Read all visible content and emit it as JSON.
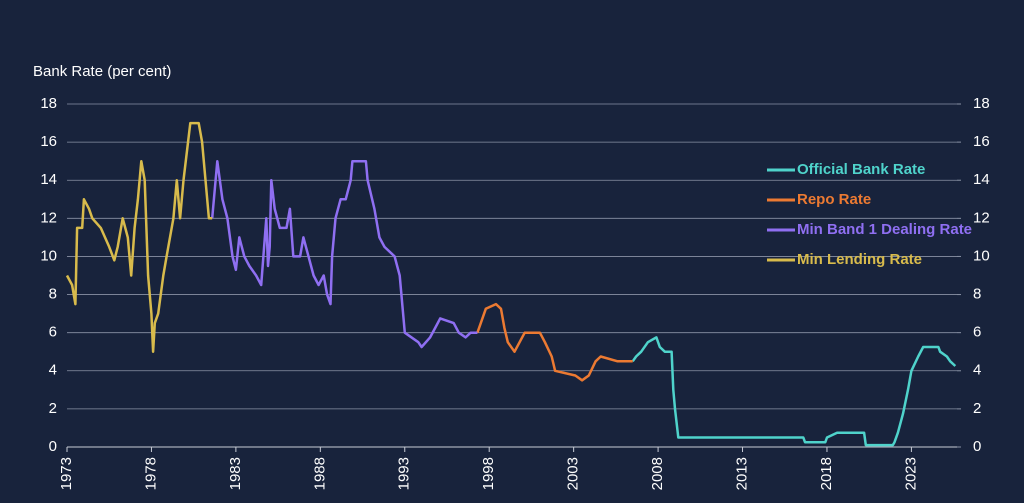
{
  "chart_data": {
    "type": "line",
    "y_axis_label": "Bank Rate (per cent)",
    "xlim": [
      1973,
      2025.7
    ],
    "xticks": [
      1973,
      1978,
      1983,
      1988,
      1993,
      1998,
      2003,
      2008,
      2013,
      2018,
      2023
    ],
    "ylim": [
      0,
      18
    ],
    "yticks": [
      0,
      2,
      4,
      6,
      8,
      10,
      12,
      14,
      16,
      18
    ],
    "y2lim": [
      0,
      18
    ],
    "y2ticks": [
      0,
      2,
      4,
      6,
      8,
      10,
      12,
      14,
      16,
      18
    ],
    "grid": true,
    "series": [
      {
        "name": "Official Bank Rate",
        "color": "#4fd3cb",
        "x": [
          2006.5,
          2006.7,
          2007.0,
          2007.4,
          2007.9,
          2008.1,
          2008.4,
          2008.8,
          2008.9,
          2009.0,
          2009.2,
          2016.6,
          2016.7,
          2017.9,
          2018.0,
          2018.6,
          2020.2,
          2020.3,
          2021.9,
          2022.0,
          2022.2,
          2022.5,
          2022.8,
          2023.0,
          2023.4,
          2023.7,
          2024.6,
          2024.7,
          2025.1,
          2025.3,
          2025.6
        ],
        "values": [
          4.5,
          4.75,
          5,
          5.5,
          5.75,
          5.25,
          5,
          5,
          3,
          2,
          0.5,
          0.5,
          0.25,
          0.25,
          0.5,
          0.75,
          0.75,
          0.1,
          0.1,
          0.25,
          0.75,
          1.75,
          3,
          4,
          4.75,
          5.25,
          5.25,
          5,
          4.75,
          4.5,
          4.25
        ]
      },
      {
        "name": "Repo Rate",
        "color": "#ec7a32",
        "x": [
          1997.3,
          1997.5,
          1997.8,
          1998.4,
          1998.7,
          1998.9,
          1999.1,
          1999.5,
          1999.8,
          2000.1,
          2001.0,
          2001.3,
          2001.7,
          2001.9,
          2003.1,
          2003.5,
          2003.9,
          2004.3,
          2004.6,
          2005.6,
          2006.5
        ],
        "values": [
          6,
          6.5,
          7.25,
          7.5,
          7.25,
          6.25,
          5.5,
          5,
          5.5,
          6,
          6,
          5.5,
          4.75,
          4,
          3.75,
          3.5,
          3.75,
          4.5,
          4.75,
          4.5,
          4.5
        ]
      },
      {
        "name": "Min Band 1 Dealing Rate",
        "color": "#8f6ff2",
        "x": [
          1981.6,
          1981.8,
          1981.9,
          1982.2,
          1982.5,
          1982.8,
          1983.0,
          1983.2,
          1983.5,
          1983.8,
          1984.2,
          1984.5,
          1984.8,
          1984.9,
          1985.0,
          1985.1,
          1985.3,
          1985.6,
          1986.0,
          1986.2,
          1986.4,
          1986.8,
          1987.0,
          1987.3,
          1987.6,
          1987.9,
          1988.2,
          1988.4,
          1988.6,
          1988.7,
          1988.9,
          1989.2,
          1989.5,
          1989.8,
          1989.9,
          1990.7,
          1990.8,
          1991.2,
          1991.5,
          1991.8,
          1992.4,
          1992.7,
          1992.9,
          1993.0,
          1993.8,
          1994.0,
          1994.5,
          1994.8,
          1995.1,
          1995.9,
          1996.2,
          1996.6,
          1996.9,
          1997.3
        ],
        "values": [
          12,
          14,
          15,
          13,
          12,
          10,
          9.3,
          11,
          10,
          9.5,
          9,
          8.5,
          12,
          9.5,
          10.5,
          14,
          12.5,
          11.5,
          11.5,
          12.5,
          10,
          10,
          11,
          10,
          9,
          8.5,
          9,
          8,
          7.5,
          10,
          12,
          13,
          13,
          14,
          15,
          15,
          14,
          12.5,
          11,
          10.5,
          10,
          9,
          7,
          6,
          5.5,
          5.25,
          5.75,
          6.25,
          6.75,
          6.5,
          6,
          5.75,
          6,
          6
        ]
      },
      {
        "name": "Min Lending Rate",
        "color": "#d8bb4c",
        "x": [
          1973.0,
          1973.3,
          1973.5,
          1973.6,
          1973.9,
          1974.0,
          1974.3,
          1974.5,
          1975.0,
          1975.5,
          1975.8,
          1976.0,
          1976.3,
          1976.6,
          1976.8,
          1977.0,
          1977.2,
          1977.4,
          1977.6,
          1977.8,
          1978.0,
          1978.1,
          1978.2,
          1978.4,
          1978.7,
          1978.9,
          1979.3,
          1979.5,
          1979.7,
          1979.9,
          1980.3,
          1980.8,
          1981.0,
          1981.2,
          1981.4,
          1981.6
        ],
        "values": [
          9,
          8.5,
          7.5,
          11.5,
          11.5,
          13,
          12.5,
          12,
          11.5,
          10.5,
          9.8,
          10.5,
          12,
          11,
          9,
          11.5,
          13,
          15,
          14,
          9,
          7,
          5,
          6.5,
          7,
          9,
          10,
          12,
          14,
          12,
          14,
          17,
          17,
          16,
          14,
          12,
          12
        ]
      }
    ]
  }
}
